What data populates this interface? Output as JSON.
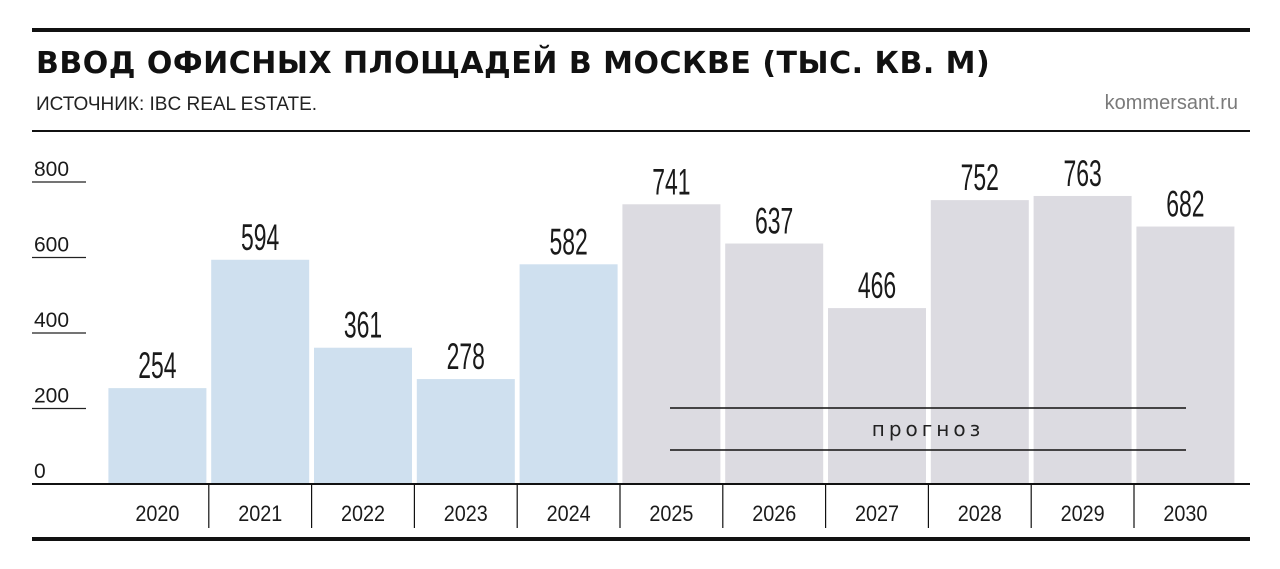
{
  "header": {
    "title": "ВВОД ОФИСНЫХ ПЛОЩАДЕЙ В МОСКВЕ (ТЫС. КВ. М)",
    "source": "ИСТОЧНИК: IBC REAL ESTATE.",
    "site": "kommersant.ru"
  },
  "chart_data": {
    "type": "bar",
    "title": "ВВОД ОФИСНЫХ ПЛОЩАДЕЙ В МОСКВЕ (ТЫС. КВ. М)",
    "categories": [
      "2020",
      "2021",
      "2022",
      "2023",
      "2024",
      "2025",
      "2026",
      "2027",
      "2028",
      "2029",
      "2030"
    ],
    "values": [
      254,
      594,
      361,
      278,
      582,
      741,
      637,
      466,
      752,
      763,
      682
    ],
    "ylim": [
      0,
      800
    ],
    "yticks": [
      0,
      200,
      400,
      600,
      800
    ],
    "forecast_from_index": 5,
    "forecast_label": "прогноз",
    "colors": {
      "actual": "#cfe0ef",
      "forecast": "#dcdbe1"
    },
    "grid": false,
    "data_labels": true
  }
}
